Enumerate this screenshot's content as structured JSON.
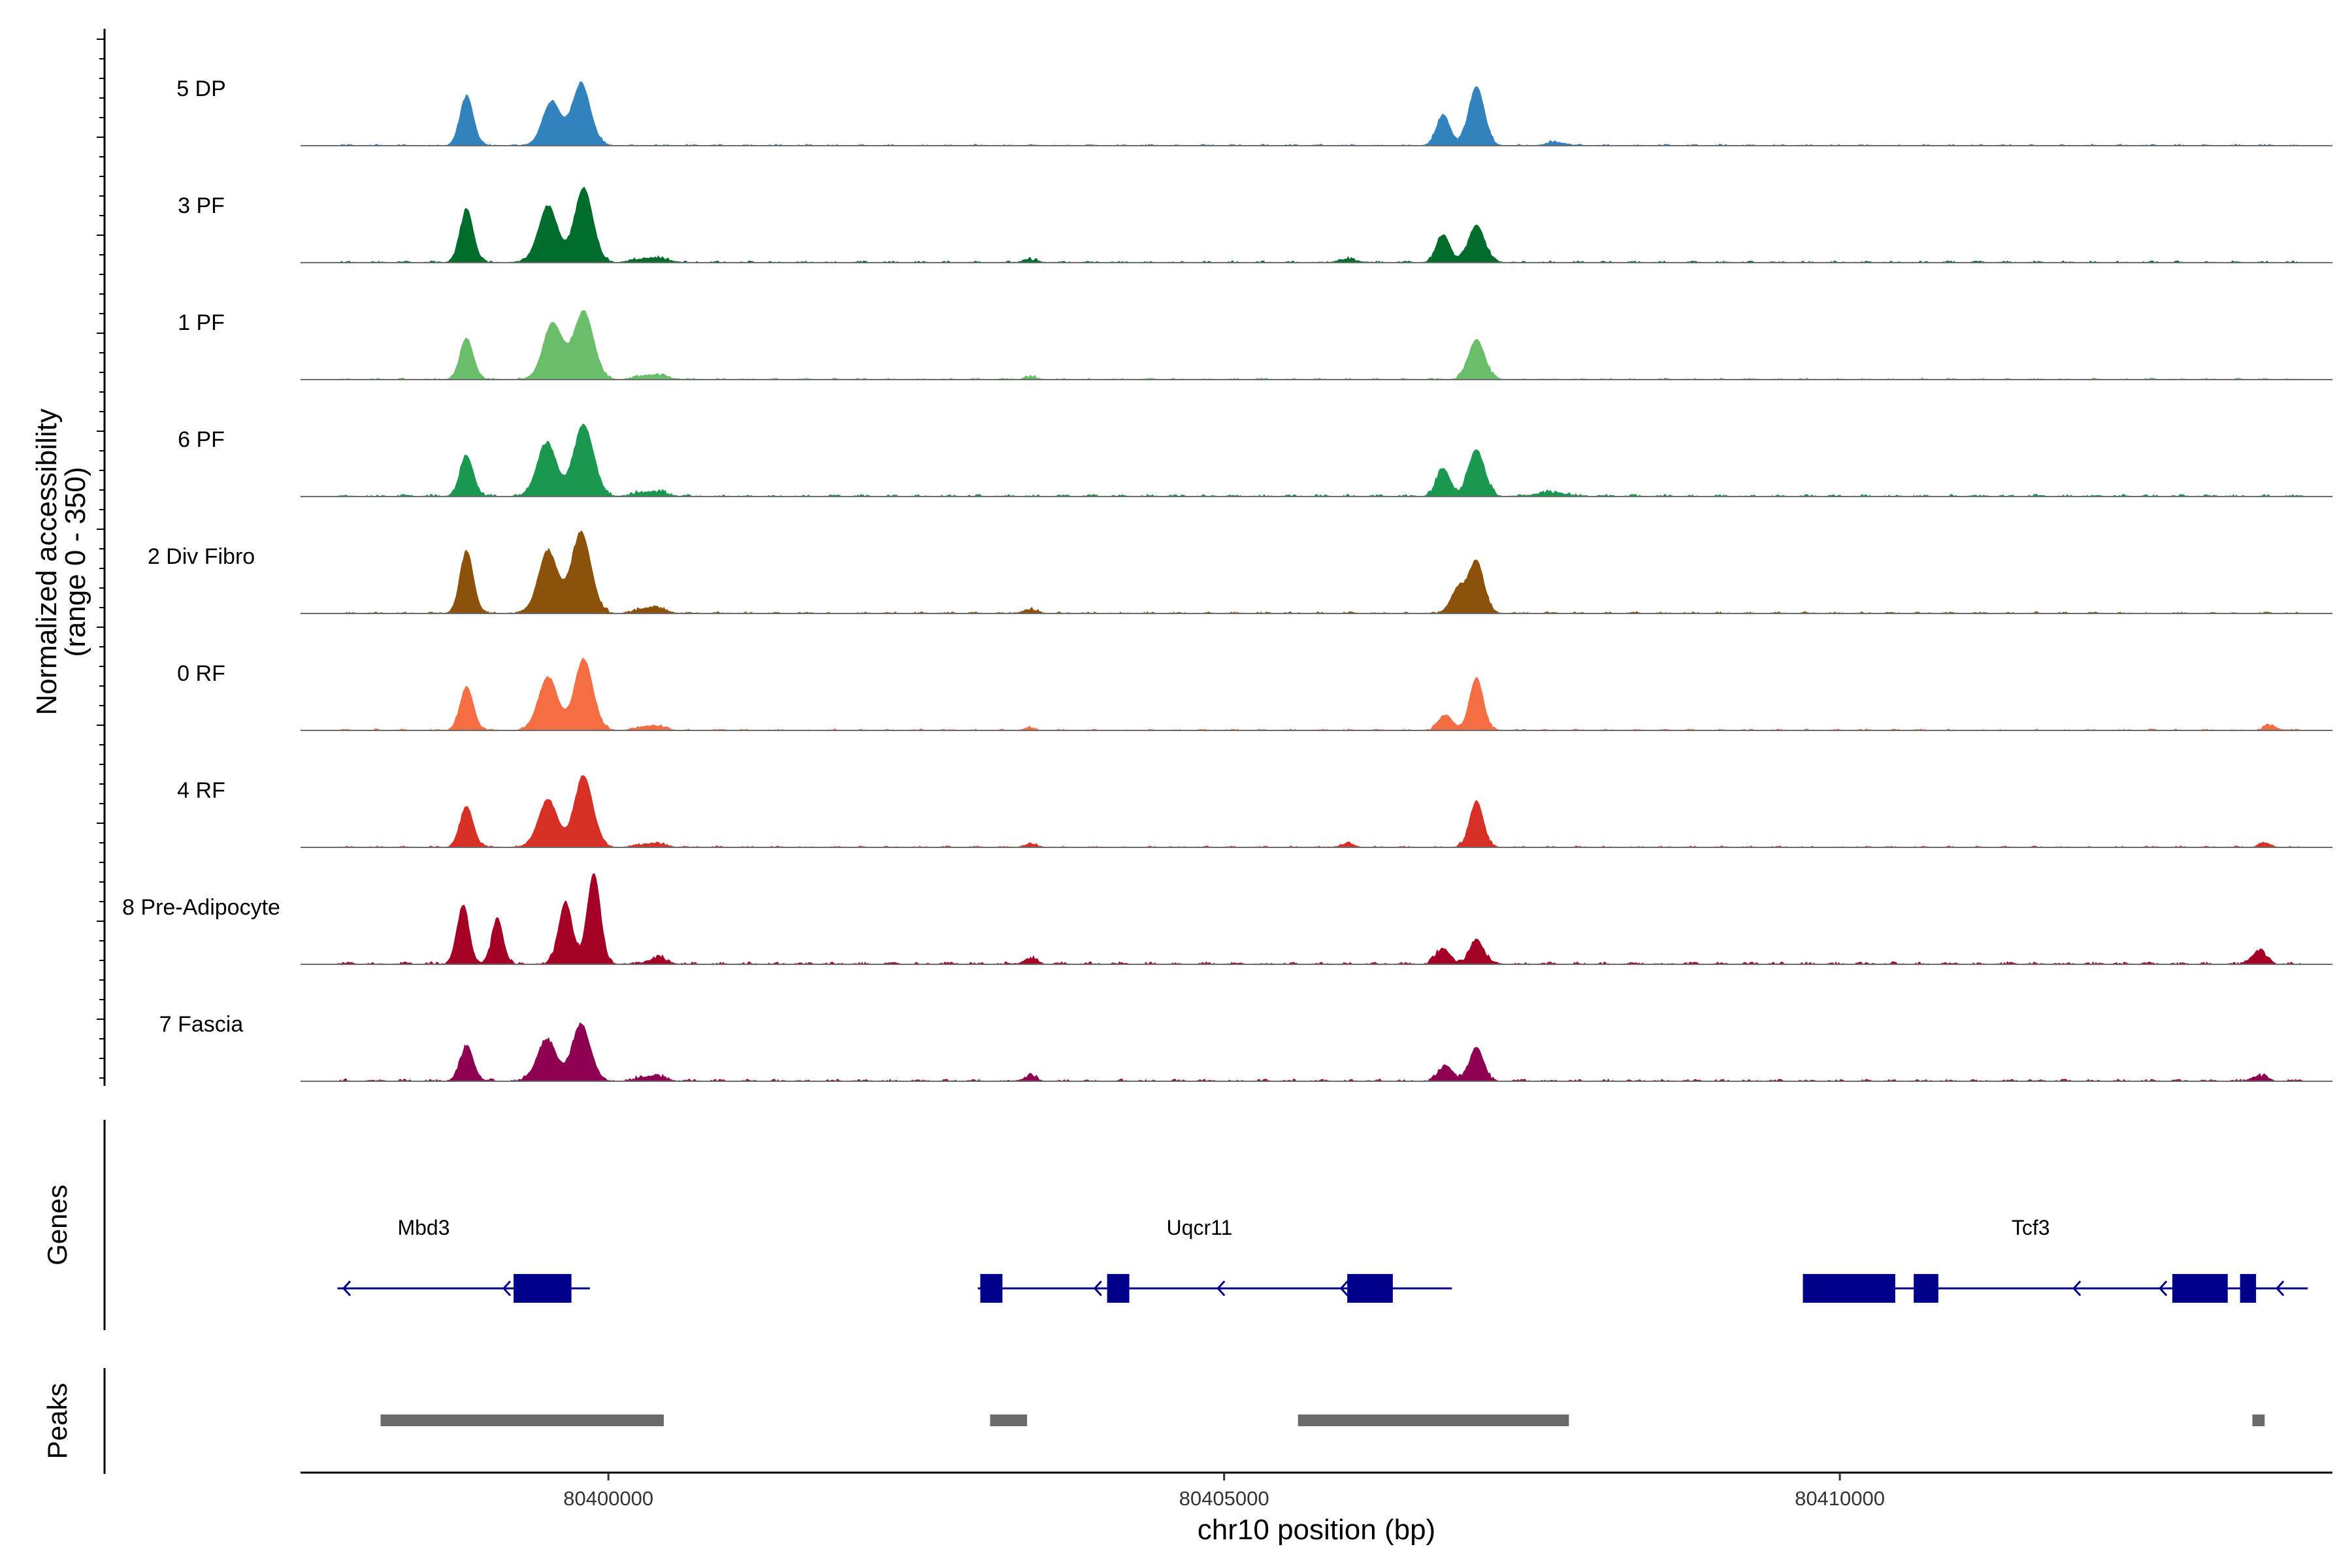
{
  "chart_data": {
    "type": "area",
    "title": "",
    "chromosome": "chr10",
    "x_label": "chr10 position (bp)",
    "y_label": "Normalized accessibility",
    "y_range_label": "(range 0 - 350)",
    "y_range": [
      0,
      350
    ],
    "x_range": [
      80397500,
      80414000
    ],
    "x_ticks": [
      {
        "value": 80400000,
        "label": "80400000"
      },
      {
        "value": 80405000,
        "label": "80405000"
      },
      {
        "value": 80410000,
        "label": "80410000"
      }
    ],
    "data_extent": [
      80397800,
      80413800
    ],
    "series": [
      {
        "name": "5 DP",
        "color": "#3182BD",
        "noise": 6,
        "peaks": [
          [
            80398850,
            160,
            55
          ],
          [
            80399540,
            140,
            75
          ],
          [
            80399780,
            200,
            75
          ],
          [
            80406780,
            100,
            55
          ],
          [
            80407050,
            190,
            65
          ],
          [
            80407700,
            10,
            80
          ]
        ]
      },
      {
        "name": "3 PF",
        "color": "#006D2C",
        "noise": 7,
        "peaks": [
          [
            80398850,
            170,
            55
          ],
          [
            80399510,
            180,
            80
          ],
          [
            80399800,
            240,
            75
          ],
          [
            80400350,
            15,
            120
          ],
          [
            80403420,
            8,
            60
          ],
          [
            80406000,
            10,
            80
          ],
          [
            80406780,
            90,
            55
          ],
          [
            80407050,
            120,
            65
          ]
        ]
      },
      {
        "name": "1 PF",
        "color": "#6ABE69",
        "noise": 6,
        "peaks": [
          [
            80398850,
            130,
            55
          ],
          [
            80399550,
            180,
            80
          ],
          [
            80399800,
            220,
            80
          ],
          [
            80400350,
            15,
            110
          ],
          [
            80403420,
            8,
            50
          ],
          [
            80407050,
            130,
            65
          ]
        ]
      },
      {
        "name": "6 PF",
        "color": "#1A9850",
        "noise": 9,
        "peaks": [
          [
            80398850,
            130,
            55
          ],
          [
            80399500,
            170,
            80
          ],
          [
            80399800,
            230,
            80
          ],
          [
            80400350,
            15,
            110
          ],
          [
            80406780,
            90,
            55
          ],
          [
            80407050,
            150,
            65
          ],
          [
            80407650,
            12,
            120
          ]
        ]
      },
      {
        "name": "2 Div Fibro",
        "color": "#8C510A",
        "noise": 7,
        "peaks": [
          [
            80398850,
            200,
            55
          ],
          [
            80399510,
            200,
            80
          ],
          [
            80399780,
            260,
            80
          ],
          [
            80400350,
            20,
            100
          ],
          [
            80403420,
            10,
            60
          ],
          [
            80406900,
            80,
            60
          ],
          [
            80407050,
            170,
            60
          ]
        ]
      },
      {
        "name": "0 RF",
        "color": "#F46D43",
        "noise": 6,
        "peaks": [
          [
            80398850,
            140,
            55
          ],
          [
            80399510,
            170,
            80
          ],
          [
            80399800,
            230,
            75
          ],
          [
            80400350,
            15,
            100
          ],
          [
            80403420,
            8,
            50
          ],
          [
            80406800,
            50,
            55
          ],
          [
            80407050,
            170,
            55
          ],
          [
            80413500,
            15,
            50
          ]
        ]
      },
      {
        "name": "4 RF",
        "color": "#D73027",
        "noise": 6,
        "peaks": [
          [
            80398850,
            130,
            55
          ],
          [
            80399510,
            150,
            80
          ],
          [
            80399800,
            230,
            75
          ],
          [
            80400350,
            12,
            100
          ],
          [
            80403420,
            10,
            50
          ],
          [
            80406000,
            10,
            60
          ],
          [
            80407050,
            150,
            55
          ],
          [
            80413450,
            12,
            50
          ]
        ]
      },
      {
        "name": "8 Pre-Adipocyte",
        "color": "#A50026",
        "noise": 10,
        "peaks": [
          [
            80398820,
            190,
            50
          ],
          [
            80399100,
            150,
            45
          ],
          [
            80399650,
            200,
            55
          ],
          [
            80399880,
            290,
            55
          ],
          [
            80400400,
            20,
            70
          ],
          [
            80403420,
            15,
            50
          ],
          [
            80406780,
            50,
            55
          ],
          [
            80407050,
            80,
            55
          ],
          [
            80413400,
            40,
            60
          ]
        ]
      },
      {
        "name": "7 Fascia",
        "color": "#8E0152",
        "noise": 9,
        "peaks": [
          [
            80398850,
            110,
            55
          ],
          [
            80399500,
            130,
            80
          ],
          [
            80399780,
            180,
            75
          ],
          [
            80400350,
            15,
            100
          ],
          [
            80403420,
            14,
            50
          ],
          [
            80406800,
            50,
            55
          ],
          [
            80407050,
            110,
            55
          ],
          [
            80413400,
            15,
            60
          ]
        ]
      }
    ],
    "genes": [
      {
        "name": "Mbd3",
        "label_pos": 80398500,
        "strand": "-",
        "line": [
          80397800,
          80399850
        ],
        "exons": [
          [
            80399230,
            80399700
          ]
        ],
        "arrows": [
          80397850,
          80399150
        ]
      },
      {
        "name": "Uqcr11",
        "label_pos": 80404800,
        "strand": "-",
        "line": [
          80403000,
          80406850
        ],
        "exons": [
          [
            80403020,
            80403200
          ],
          [
            80404050,
            80404230
          ],
          [
            80406000,
            80406370
          ]
        ],
        "arrows": [
          80403950,
          80404950,
          80405950
        ]
      },
      {
        "name": "Tcf3",
        "label_pos": 80411550,
        "strand": "-",
        "line": [
          80409700,
          80413800
        ],
        "exons": [
          [
            80409700,
            80410450
          ],
          [
            80410600,
            80410800
          ],
          [
            80412700,
            80413150
          ],
          [
            80413250,
            80413380
          ]
        ],
        "arrows": [
          80411900,
          80412600,
          80413550
        ]
      }
    ],
    "peaks_track": [
      [
        80398150,
        80400450
      ],
      [
        80403100,
        80403400
      ],
      [
        80405600,
        80407800
      ],
      [
        80413350,
        80413450
      ]
    ],
    "side_labels": {
      "genes": "Genes",
      "peaks": "Peaks"
    }
  }
}
